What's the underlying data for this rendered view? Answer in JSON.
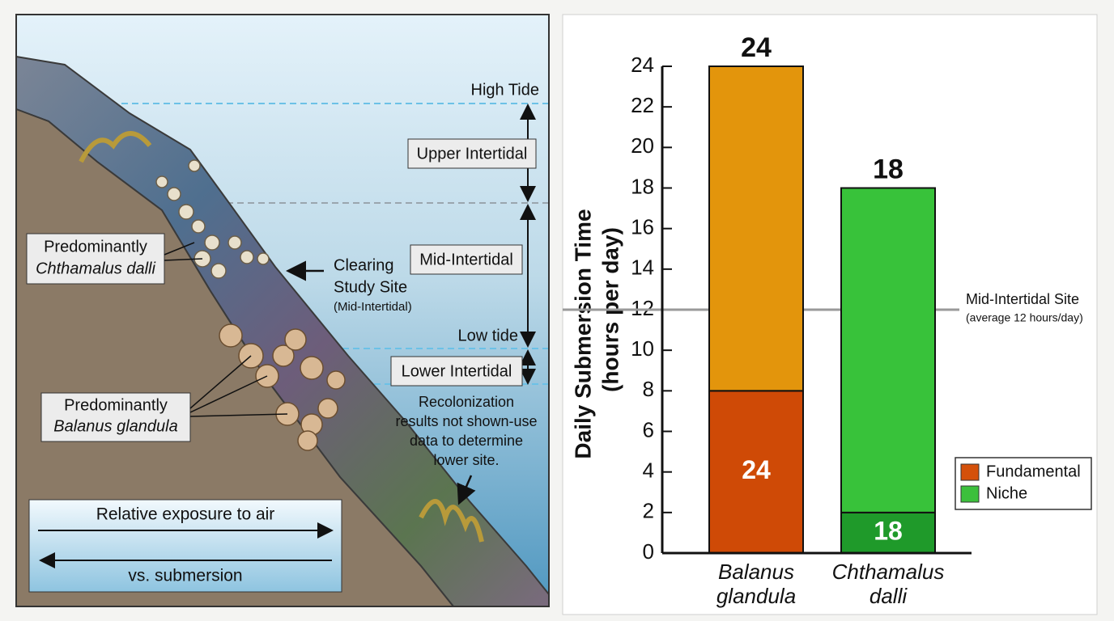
{
  "illustration": {
    "zones": {
      "high_tide": "High Tide",
      "upper": "Upper Intertidal",
      "mid": "Mid-Intertidal",
      "low_tide": "Low tide",
      "lower": "Lower Intertidal"
    },
    "chthamalus_box": [
      "Predominantly",
      "Chthamalus dalli"
    ],
    "balanus_box": [
      "Predominantly",
      "Balanus glandula"
    ],
    "study_site": [
      "Clearing",
      "Study Site",
      "(Mid-Intertidal)"
    ],
    "recolonization_note": [
      "Recolonization",
      "results not shown-use",
      "data to determine",
      "lower site."
    ],
    "exposure_box": [
      "Relative exposure to air",
      "vs. submersion"
    ]
  },
  "chart_data": {
    "type": "stacked_bar",
    "categories": [
      "Balanus glandula",
      "Chthamalus dalli"
    ],
    "series": [
      {
        "values": [
          8,
          2
        ],
        "colors": [
          "#cf4a06",
          "#1f9a2a"
        ],
        "inner_labels": [
          24,
          18
        ]
      },
      {
        "values": [
          16,
          16
        ],
        "colors": [
          "#e3950c",
          "#38c23a"
        ]
      }
    ],
    "totals": [
      24,
      18
    ],
    "ylabel": [
      "Daily Submersion Time",
      "(hours per day)"
    ],
    "ylim": [
      0,
      24
    ],
    "yticks": [
      0,
      2,
      4,
      6,
      8,
      10,
      12,
      14,
      16,
      18,
      20,
      22,
      24
    ],
    "reference_line": {
      "value": 12,
      "label": "Mid-Intertidal Site",
      "sublabel": "(average 12 hours/day)",
      "color": "#999999"
    },
    "legend": {
      "position": "lower right",
      "items": [
        {
          "label": "Fundamental",
          "color": "#d4500a"
        },
        {
          "label": "Niche",
          "color": "#3cc03c"
        }
      ]
    }
  }
}
